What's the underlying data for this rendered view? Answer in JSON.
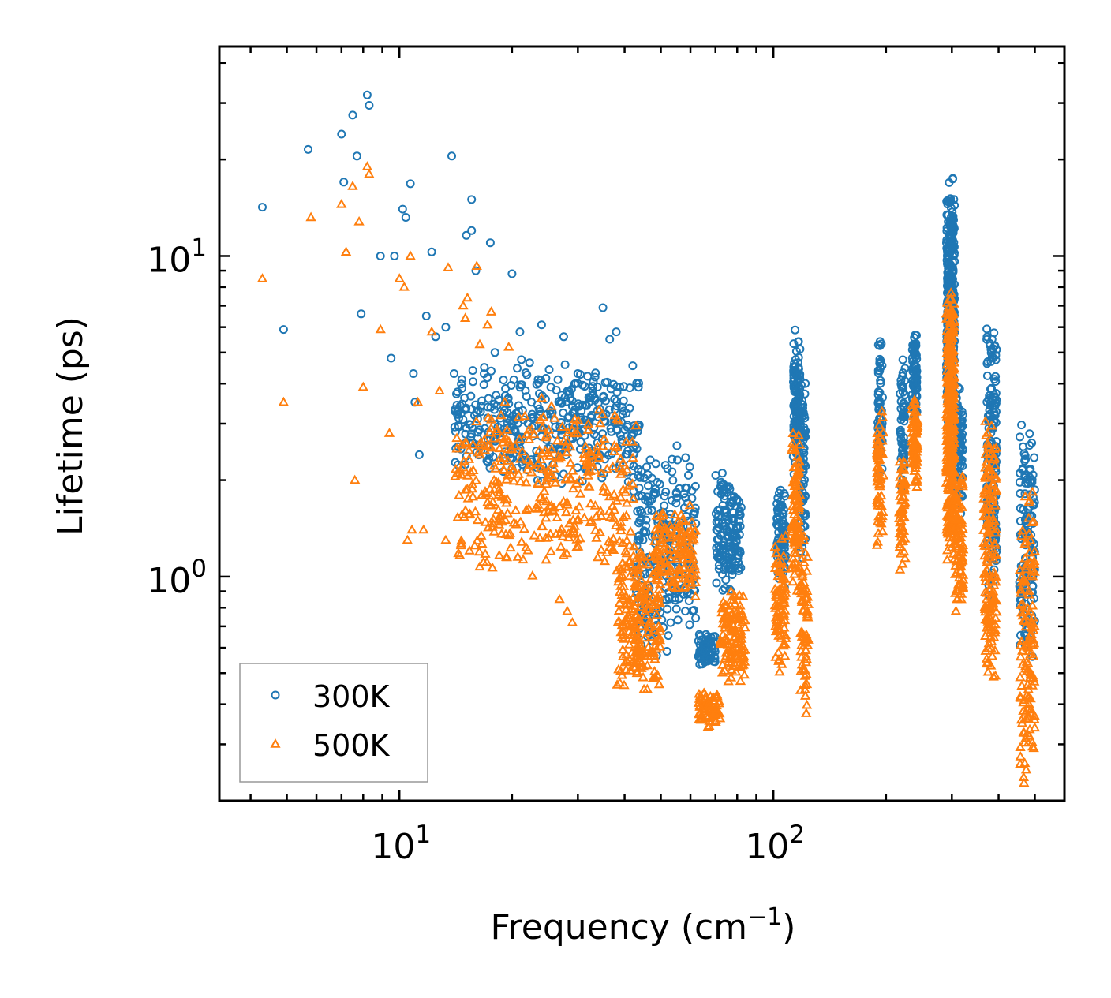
{
  "chart_data": {
    "type": "scatter",
    "xscale": "log",
    "yscale": "log",
    "xlim": [
      3.3,
      600
    ],
    "ylim": [
      0.2,
      45
    ],
    "xlabel": "Frequency (cm",
    "xlabel_sup": "−1",
    "xlabel_close": ")",
    "ylabel": "Lifetime (ps)",
    "x_major_ticks": [
      {
        "value": 10,
        "base": "10",
        "exp": "1"
      },
      {
        "value": 100,
        "base": "10",
        "exp": "2"
      }
    ],
    "y_major_ticks": [
      {
        "value": 1,
        "base": "10",
        "exp": "0"
      },
      {
        "value": 10,
        "base": "10",
        "exp": "1"
      }
    ],
    "legend_position": "bottom-left",
    "series": [
      {
        "name": "300K",
        "marker": "circle",
        "color": "#1f77b4",
        "points": [
          [
            4.3,
            14.2
          ],
          [
            4.9,
            5.9
          ],
          [
            5.7,
            21.5
          ],
          [
            7.0,
            24.0
          ],
          [
            7.1,
            17.0
          ],
          [
            7.5,
            27.5
          ],
          [
            7.7,
            20.5
          ],
          [
            7.9,
            6.6
          ],
          [
            8.2,
            31.8
          ],
          [
            8.3,
            29.5
          ],
          [
            8.9,
            10.0
          ],
          [
            9.5,
            4.8
          ],
          [
            9.7,
            10.0
          ],
          [
            10.2,
            14.0
          ],
          [
            10.4,
            13.2
          ],
          [
            10.7,
            16.8
          ],
          [
            10.9,
            4.3
          ],
          [
            11.0,
            3.5
          ],
          [
            11.3,
            2.4
          ],
          [
            11.8,
            6.5
          ],
          [
            12.2,
            10.3
          ],
          [
            12.5,
            5.6
          ],
          [
            13.3,
            6.0
          ],
          [
            13.8,
            20.5
          ],
          [
            14.0,
            4.3
          ],
          [
            14.6,
            2.5
          ],
          [
            15.1,
            11.6
          ],
          [
            15.6,
            12.0
          ],
          [
            15.6,
            15.0
          ],
          [
            16.0,
            9.0
          ],
          [
            17.5,
            11.0
          ],
          [
            18.0,
            5.0
          ],
          [
            20.0,
            8.8
          ],
          [
            21.0,
            5.8
          ],
          [
            24.0,
            6.1
          ],
          [
            27.5,
            5.6
          ],
          [
            35.0,
            6.9
          ],
          [
            36.5,
            5.5
          ],
          [
            38.0,
            5.8
          ]
        ],
        "clusters": [
          {
            "x": [
              14.0,
              44.0
            ],
            "y": [
              1.9,
              4.8
            ],
            "n": 420
          },
          {
            "x": [
              42.0,
              62.0
            ],
            "y": [
              0.55,
              2.6
            ],
            "n": 260
          },
          {
            "x": [
              63.0,
              70.0
            ],
            "y": [
              0.52,
              0.68
            ],
            "n": 70
          },
          {
            "x": [
              70.0,
              82.0
            ],
            "y": [
              0.9,
              2.2
            ],
            "n": 150
          },
          {
            "x": [
              102.0,
              108.0
            ],
            "y": [
              0.9,
              1.95
            ],
            "n": 80
          },
          {
            "x": [
              113.0,
              118.0
            ],
            "y": [
              2.0,
              6.0
            ],
            "n": 110
          },
          {
            "x": [
              118.0,
              122.0
            ],
            "y": [
              1.0,
              4.5
            ],
            "n": 70
          },
          {
            "x": [
              190.0,
              196.0
            ],
            "y": [
              1.8,
              6.0
            ],
            "n": 60
          },
          {
            "x": [
              218.0,
              225.0
            ],
            "y": [
              1.8,
              5.0
            ],
            "n": 60
          },
          {
            "x": [
              235.0,
              242.0
            ],
            "y": [
              3.0,
              6.2
            ],
            "n": 80
          },
          {
            "x": [
              290.0,
              305.0
            ],
            "y": [
              3.0,
              18.0
            ],
            "n": 300
          },
          {
            "x": [
              305.0,
              322.0
            ],
            "y": [
              1.5,
              4.2
            ],
            "n": 90
          },
          {
            "x": [
              372.0,
              395.0
            ],
            "y": [
              0.8,
              6.6
            ],
            "n": 180
          },
          {
            "x": [
              455.0,
              500.0
            ],
            "y": [
              0.5,
              3.3
            ],
            "n": 130
          }
        ]
      },
      {
        "name": "500K",
        "marker": "triangle",
        "color": "#ff7f0e",
        "points": [
          [
            4.3,
            8.5
          ],
          [
            4.9,
            3.5
          ],
          [
            5.8,
            13.2
          ],
          [
            7.0,
            14.5
          ],
          [
            7.2,
            10.3
          ],
          [
            7.5,
            16.5
          ],
          [
            7.6,
            2.0
          ],
          [
            7.8,
            12.8
          ],
          [
            8.0,
            3.9
          ],
          [
            8.2,
            19.0
          ],
          [
            8.3,
            18.0
          ],
          [
            8.9,
            5.9
          ],
          [
            9.4,
            2.8
          ],
          [
            10.0,
            8.5
          ],
          [
            10.3,
            8.0
          ],
          [
            10.5,
            1.3
          ],
          [
            10.7,
            10.0
          ],
          [
            10.8,
            1.4
          ],
          [
            11.2,
            3.5
          ],
          [
            11.6,
            1.4
          ],
          [
            12.2,
            5.8
          ],
          [
            12.8,
            3.8
          ],
          [
            13.3,
            1.3
          ],
          [
            13.5,
            9.2
          ],
          [
            14.8,
            7.0
          ],
          [
            15.0,
            6.4
          ],
          [
            15.2,
            7.4
          ],
          [
            15.9,
            1.25
          ],
          [
            16.1,
            9.3
          ],
          [
            16.4,
            5.3
          ],
          [
            17.2,
            6.1
          ],
          [
            17.6,
            6.7
          ],
          [
            19.6,
            5.2
          ],
          [
            24.0,
            3.6
          ],
          [
            26.8,
            0.85
          ],
          [
            28.1,
            0.78
          ],
          [
            29.0,
            0.72
          ]
        ],
        "clusters": [
          {
            "x": [
              14.0,
              43.0
            ],
            "y": [
              1.0,
              3.6
            ],
            "n": 380
          },
          {
            "x": [
              38.0,
              50.0
            ],
            "y": [
              0.42,
              1.3
            ],
            "n": 220
          },
          {
            "x": [
              48.0,
              62.0
            ],
            "y": [
              0.85,
              1.7
            ],
            "n": 130
          },
          {
            "x": [
              63.0,
              72.0
            ],
            "y": [
              0.33,
              0.45
            ],
            "n": 70
          },
          {
            "x": [
              72.0,
              84.0
            ],
            "y": [
              0.45,
              0.95
            ],
            "n": 130
          },
          {
            "x": [
              101.0,
              108.0
            ],
            "y": [
              0.5,
              1.35
            ],
            "n": 80
          },
          {
            "x": [
              112.0,
              118.0
            ],
            "y": [
              0.9,
              3.0
            ],
            "n": 100
          },
          {
            "x": [
              118.0,
              124.0
            ],
            "y": [
              0.35,
              1.5
            ],
            "n": 70
          },
          {
            "x": [
              189.0,
              197.0
            ],
            "y": [
              1.2,
              3.3
            ],
            "n": 60
          },
          {
            "x": [
              217.0,
              226.0
            ],
            "y": [
              1.0,
              2.4
            ],
            "n": 60
          },
          {
            "x": [
              234.0,
              243.0
            ],
            "y": [
              1.8,
              3.8
            ],
            "n": 70
          },
          {
            "x": [
              290.0,
              305.0
            ],
            "y": [
              1.0,
              9.0
            ],
            "n": 300
          },
          {
            "x": [
              305.0,
              322.0
            ],
            "y": [
              0.75,
              2.2
            ],
            "n": 90
          },
          {
            "x": [
              365.0,
              395.0
            ],
            "y": [
              0.45,
              3.3
            ],
            "n": 170
          },
          {
            "x": [
              455.0,
              500.0
            ],
            "y": [
              0.2,
              2.0
            ],
            "n": 140
          }
        ]
      }
    ]
  }
}
